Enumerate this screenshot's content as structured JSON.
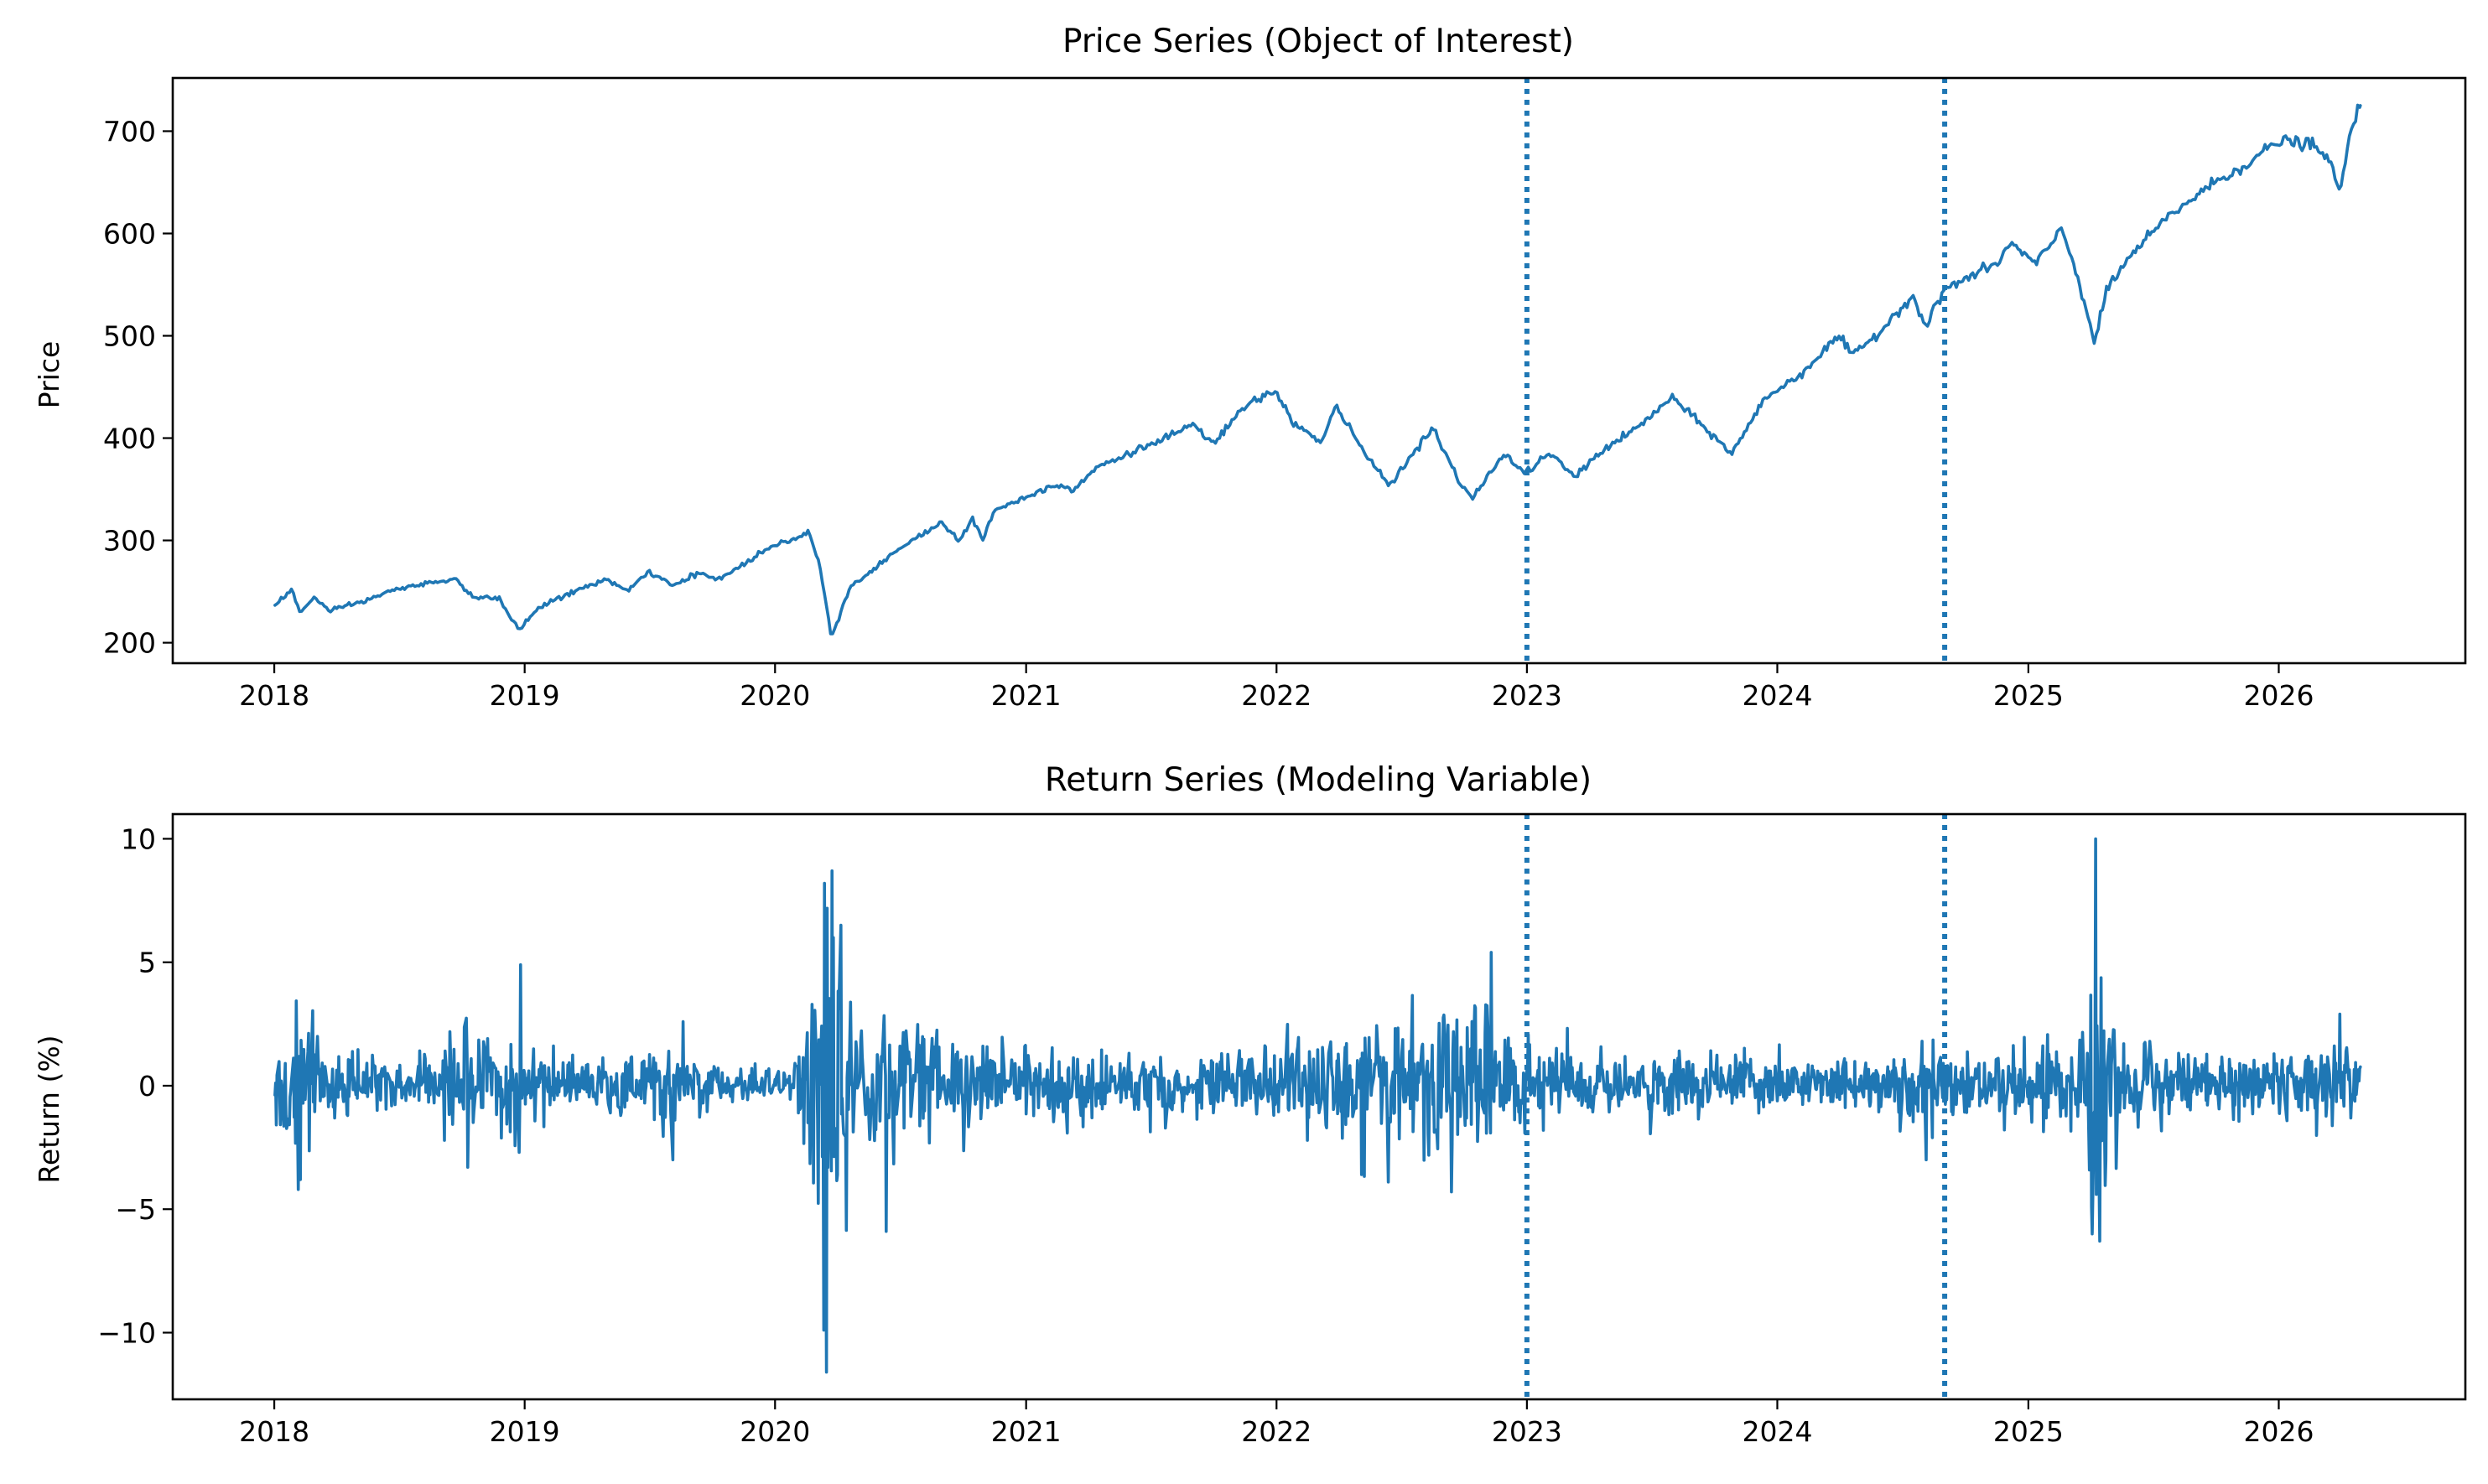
{
  "colors": {
    "series": "#1f77b4",
    "axes": "#000000",
    "background": "#ffffff"
  },
  "chart_data": [
    {
      "type": "line",
      "title": "Price Series (Object of Interest)",
      "xlabel": "",
      "ylabel": "Price",
      "x_axis": "date",
      "xlim": [
        "2017-08-06",
        "2026-09-30"
      ],
      "ylim": [
        180,
        752
      ],
      "x_ticks": [
        "2018",
        "2019",
        "2020",
        "2021",
        "2022",
        "2023",
        "2024",
        "2025",
        "2026"
      ],
      "y_ticks": [
        200,
        300,
        400,
        500,
        600,
        700
      ],
      "grid": false,
      "vertical_markers": [
        "2023-01-01",
        "2024-09-01"
      ],
      "marker_style": "dotted",
      "series": [
        {
          "points": [
            [
              "2018-01-02",
              237
            ],
            [
              "2018-01-26",
              252
            ],
            [
              "2018-02-08",
              229
            ],
            [
              "2018-03-01",
              245
            ],
            [
              "2018-03-23",
              230
            ],
            [
              "2018-04-15",
              236
            ],
            [
              "2018-05-15",
              241
            ],
            [
              "2018-06-15",
              250
            ],
            [
              "2018-07-15",
              254
            ],
            [
              "2018-08-15",
              259
            ],
            [
              "2018-09-20",
              262
            ],
            [
              "2018-10-20",
              244
            ],
            [
              "2018-11-25",
              243
            ],
            [
              "2018-12-24",
              212
            ],
            [
              "2019-01-20",
              234
            ],
            [
              "2019-02-25",
              245
            ],
            [
              "2019-04-01",
              255
            ],
            [
              "2019-05-01",
              262
            ],
            [
              "2019-06-01",
              250
            ],
            [
              "2019-07-01",
              270
            ],
            [
              "2019-08-05",
              255
            ],
            [
              "2019-09-10",
              268
            ],
            [
              "2019-10-10",
              262
            ],
            [
              "2019-11-15",
              276
            ],
            [
              "2019-12-15",
              290
            ],
            [
              "2020-01-20",
              300
            ],
            [
              "2020-02-19",
              308
            ],
            [
              "2020-03-05",
              280
            ],
            [
              "2020-03-23",
              206
            ],
            [
              "2020-04-20",
              255
            ],
            [
              "2020-05-20",
              270
            ],
            [
              "2020-06-15",
              285
            ],
            [
              "2020-07-20",
              300
            ],
            [
              "2020-09-01",
              318
            ],
            [
              "2020-09-25",
              300
            ],
            [
              "2020-10-15",
              320
            ],
            [
              "2020-10-30",
              300
            ],
            [
              "2020-11-15",
              330
            ],
            [
              "2020-12-31",
              342
            ],
            [
              "2021-02-15",
              355
            ],
            [
              "2021-03-10",
              350
            ],
            [
              "2021-04-15",
              372
            ],
            [
              "2021-06-01",
              385
            ],
            [
              "2021-07-15",
              398
            ],
            [
              "2021-09-01",
              412
            ],
            [
              "2021-10-01",
              395
            ],
            [
              "2021-11-15",
              430
            ],
            [
              "2021-12-31",
              447
            ],
            [
              "2022-01-25",
              415
            ],
            [
              "2022-03-08",
              395
            ],
            [
              "2022-03-29",
              432
            ],
            [
              "2022-05-12",
              382
            ],
            [
              "2022-06-16",
              355
            ],
            [
              "2022-08-16",
              410
            ],
            [
              "2022-09-30",
              350
            ],
            [
              "2022-10-13",
              342
            ],
            [
              "2022-11-30",
              385
            ],
            [
              "2022-12-28",
              365
            ],
            [
              "2023-02-02",
              385
            ],
            [
              "2023-03-13",
              362
            ],
            [
              "2023-04-15",
              385
            ],
            [
              "2023-06-15",
              412
            ],
            [
              "2023-07-31",
              440
            ],
            [
              "2023-10-27",
              385
            ],
            [
              "2023-12-15",
              440
            ],
            [
              "2024-01-31",
              460
            ],
            [
              "2024-03-31",
              500
            ],
            [
              "2024-04-19",
              480
            ],
            [
              "2024-05-31",
              505
            ],
            [
              "2024-07-16",
              540
            ],
            [
              "2024-08-05",
              508
            ],
            [
              "2024-08-30",
              545
            ],
            [
              "2024-11-15",
              570
            ],
            [
              "2024-12-06",
              590
            ],
            [
              "2025-01-13",
              570
            ],
            [
              "2025-02-19",
              605
            ],
            [
              "2025-03-13",
              560
            ],
            [
              "2025-04-08",
              492
            ],
            [
              "2025-04-25",
              545
            ],
            [
              "2025-06-01",
              580
            ],
            [
              "2025-07-30",
              620
            ],
            [
              "2025-09-30",
              650
            ],
            [
              "2025-11-20",
              670
            ],
            [
              "2025-12-31",
              690
            ],
            [
              "2026-02-15",
              688
            ],
            [
              "2026-03-20",
              668
            ],
            [
              "2026-03-31",
              635
            ],
            [
              "2026-04-10",
              685
            ],
            [
              "2026-04-30",
              725
            ]
          ]
        }
      ]
    },
    {
      "type": "line",
      "title": "Return Series (Modeling Variable)",
      "xlabel": "",
      "ylabel": "Return (%)",
      "x_axis": "date",
      "xlim": [
        "2017-08-06",
        "2026-09-30"
      ],
      "ylim": [
        -12.7,
        11.0
      ],
      "x_ticks": [
        "2018",
        "2019",
        "2020",
        "2021",
        "2022",
        "2023",
        "2024",
        "2025",
        "2026"
      ],
      "y_ticks": [
        10,
        5,
        0,
        -5,
        -10
      ],
      "y_tick_labels": [
        "10",
        "5",
        "0",
        "−5",
        "−10"
      ],
      "grid": false,
      "vertical_markers": [
        "2023-01-01",
        "2024-09-01"
      ],
      "marker_style": "dotted",
      "series": [
        {
          "volatility_profile": [
            [
              "2018-01-02",
              0.8
            ],
            [
              "2018-02-01",
              1.8
            ],
            [
              "2018-04-15",
              1.0
            ],
            [
              "2018-07-01",
              0.5
            ],
            [
              "2018-10-01",
              1.4
            ],
            [
              "2019-01-15",
              1.0
            ],
            [
              "2019-04-01",
              0.7
            ],
            [
              "2019-08-01",
              1.1
            ],
            [
              "2019-11-01",
              0.5
            ],
            [
              "2020-01-20",
              0.6
            ],
            [
              "2020-02-24",
              2.5
            ],
            [
              "2020-03-16",
              6.0
            ],
            [
              "2020-04-15",
              2.8
            ],
            [
              "2020-06-15",
              1.6
            ],
            [
              "2020-09-01",
              1.4
            ],
            [
              "2020-11-15",
              1.1
            ],
            [
              "2021-03-01",
              1.0
            ],
            [
              "2021-08-01",
              0.7
            ],
            [
              "2021-12-01",
              1.0
            ],
            [
              "2022-02-15",
              1.6
            ],
            [
              "2022-06-15",
              1.8
            ],
            [
              "2022-10-15",
              1.8
            ],
            [
              "2023-01-15",
              1.2
            ],
            [
              "2023-05-01",
              0.9
            ],
            [
              "2023-09-01",
              0.8
            ],
            [
              "2024-01-15",
              0.7
            ],
            [
              "2024-06-15",
              0.7
            ],
            [
              "2024-08-10",
              1.2
            ],
            [
              "2024-11-01",
              0.8
            ],
            [
              "2025-03-01",
              1.3
            ],
            [
              "2025-04-10",
              3.5
            ],
            [
              "2025-05-15",
              1.3
            ],
            [
              "2025-09-01",
              0.7
            ],
            [
              "2026-01-15",
              0.9
            ],
            [
              "2026-04-30",
              1.1
            ]
          ],
          "spikes": [
            [
              "2018-02-05",
              -4.2
            ],
            [
              "2018-02-08",
              -3.8
            ],
            [
              "2018-10-10",
              -3.3
            ],
            [
              "2018-12-24",
              -2.7
            ],
            [
              "2018-12-26",
              4.9
            ],
            [
              "2019-08-05",
              -3.0
            ],
            [
              "2020-03-12",
              -9.9
            ],
            [
              "2020-03-13",
              8.2
            ],
            [
              "2020-03-16",
              -11.6
            ],
            [
              "2020-03-24",
              8.7
            ],
            [
              "2020-03-26",
              6.0
            ],
            [
              "2020-04-06",
              6.5
            ],
            [
              "2020-06-11",
              -5.9
            ],
            [
              "2022-05-05",
              -3.6
            ],
            [
              "2022-06-13",
              -3.9
            ],
            [
              "2022-09-13",
              -4.3
            ],
            [
              "2022-10-13",
              2.6
            ],
            [
              "2022-11-10",
              5.4
            ],
            [
              "2024-08-05",
              -3.0
            ],
            [
              "2025-04-03",
              -4.9
            ],
            [
              "2025-04-04",
              -6.0
            ],
            [
              "2025-04-09",
              10.0
            ],
            [
              "2025-04-10",
              -4.4
            ],
            [
              "2026-03-31",
              2.9
            ]
          ]
        }
      ]
    }
  ]
}
